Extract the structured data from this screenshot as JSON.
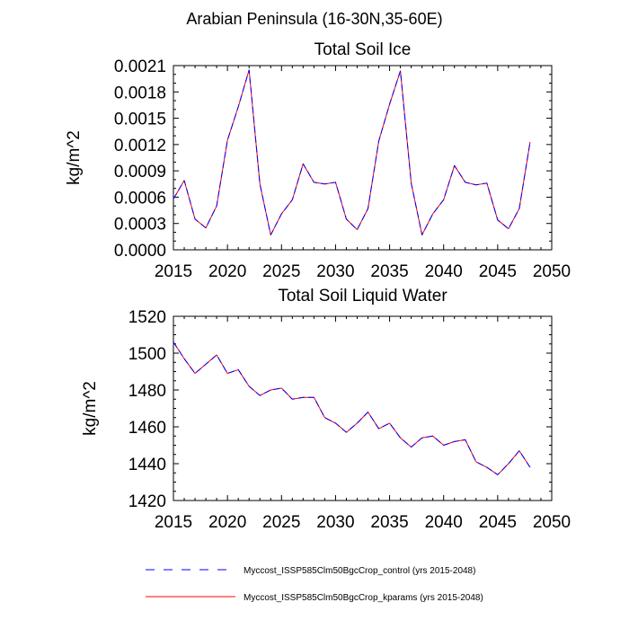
{
  "suptitle": "Arabian Peninsula (16-30N,35-60E)",
  "colors": {
    "control": "#0000ff",
    "kparams": "#ff0000",
    "axis": "#000000"
  },
  "legend": {
    "placement": "bottom",
    "entries": [
      {
        "label": "Myccost_ISSP585Clm50BgcCrop_control (yrs 2015-2048)",
        "style": "dashed",
        "color": "#0000ff"
      },
      {
        "label": "Myccost_ISSP585Clm50BgcCrop_kparams (yrs 2015-2048)",
        "style": "solid",
        "color": "#ff0000"
      }
    ]
  },
  "chart_data": [
    {
      "type": "line",
      "title": "Total Soil Ice",
      "xlabel": "",
      "ylabel": "kg/m^2",
      "xlim": [
        2015,
        2050
      ],
      "ylim": [
        0,
        0.0021
      ],
      "xticks": [
        2015,
        2020,
        2025,
        2030,
        2035,
        2040,
        2045,
        2050
      ],
      "yticks": [
        0,
        0.0003,
        0.0006,
        0.0009,
        0.0012,
        0.0015,
        0.0018,
        0.0021
      ],
      "ytick_labels": [
        "0.0000",
        "0.0003",
        "0.0006",
        "0.0009",
        "0.0012",
        "0.0015",
        "0.0018",
        "0.0021"
      ],
      "grid": false,
      "x": [
        2015,
        2016,
        2017,
        2018,
        2019,
        2020,
        2021,
        2022,
        2023,
        2024,
        2025,
        2026,
        2027,
        2028,
        2029,
        2030,
        2031,
        2032,
        2033,
        2034,
        2035,
        2036,
        2037,
        2038,
        2039,
        2040,
        2041,
        2042,
        2043,
        2044,
        2045,
        2046,
        2047,
        2048
      ],
      "series": [
        {
          "name": "Myccost_ISSP585Clm50BgcCrop_control (yrs 2015-2048)",
          "style": "dashed",
          "values": [
            0.00058,
            0.00079,
            0.00035,
            0.00025,
            0.0005,
            0.00125,
            0.00163,
            0.00205,
            0.00075,
            0.00017,
            0.00041,
            0.00057,
            0.00098,
            0.00077,
            0.00075,
            0.00077,
            0.00035,
            0.00023,
            0.00047,
            0.00124,
            0.00166,
            0.00204,
            0.00076,
            0.00017,
            0.00041,
            0.00057,
            0.00096,
            0.00077,
            0.00074,
            0.00076,
            0.00034,
            0.00024,
            0.00047,
            0.00123
          ]
        },
        {
          "name": "Myccost_ISSP585Clm50BgcCrop_kparams (yrs 2015-2048)",
          "style": "solid",
          "values": [
            0.00058,
            0.00079,
            0.00035,
            0.00025,
            0.0005,
            0.00125,
            0.00163,
            0.00205,
            0.00075,
            0.00017,
            0.00041,
            0.00057,
            0.00098,
            0.00077,
            0.00075,
            0.00077,
            0.00035,
            0.00023,
            0.00047,
            0.00124,
            0.00166,
            0.00204,
            0.00076,
            0.00017,
            0.00041,
            0.00057,
            0.00096,
            0.00077,
            0.00074,
            0.00076,
            0.00034,
            0.00024,
            0.00047,
            0.00123
          ]
        }
      ]
    },
    {
      "type": "line",
      "title": "Total Soil Liquid Water",
      "xlabel": "",
      "ylabel": "kg/m^2",
      "xlim": [
        2015,
        2050
      ],
      "ylim": [
        1420,
        1520
      ],
      "xticks": [
        2015,
        2020,
        2025,
        2030,
        2035,
        2040,
        2045,
        2050
      ],
      "yticks": [
        1420,
        1440,
        1460,
        1480,
        1500,
        1520
      ],
      "ytick_labels": [
        "1420",
        "1440",
        "1460",
        "1480",
        "1500",
        "1520"
      ],
      "grid": false,
      "x": [
        2015,
        2016,
        2017,
        2018,
        2019,
        2020,
        2021,
        2022,
        2023,
        2024,
        2025,
        2026,
        2027,
        2028,
        2029,
        2030,
        2031,
        2032,
        2033,
        2034,
        2035,
        2036,
        2037,
        2038,
        2039,
        2040,
        2041,
        2042,
        2043,
        2044,
        2045,
        2046,
        2047,
        2048
      ],
      "series": [
        {
          "name": "Myccost_ISSP585Clm50BgcCrop_control (yrs 2015-2048)",
          "style": "dashed",
          "values": [
            1506,
            1497,
            1489,
            1494,
            1499,
            1489,
            1491,
            1482,
            1477,
            1480,
            1481,
            1475,
            1476,
            1476,
            1465,
            1462,
            1457,
            1462,
            1468,
            1459,
            1462,
            1454,
            1449,
            1454,
            1455,
            1450,
            1452,
            1453,
            1441,
            1438,
            1434,
            1440,
            1447,
            1438
          ]
        },
        {
          "name": "Myccost_ISSP585Clm50BgcCrop_kparams (yrs 2015-2048)",
          "style": "solid",
          "values": [
            1506,
            1497,
            1489,
            1494,
            1499,
            1489,
            1491,
            1482,
            1477,
            1480,
            1481,
            1475,
            1476,
            1476,
            1465,
            1462,
            1457,
            1462,
            1468,
            1459,
            1462,
            1454,
            1449,
            1454,
            1455,
            1450,
            1452,
            1453,
            1441,
            1438,
            1434,
            1440,
            1447,
            1438
          ]
        }
      ]
    }
  ]
}
